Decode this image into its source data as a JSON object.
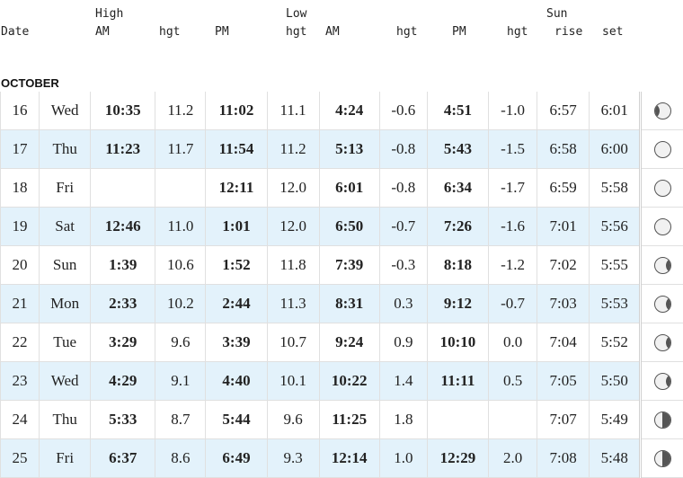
{
  "header": {
    "high_label": "High",
    "low_label": "Low",
    "sun_label": "Sun",
    "date": "Date",
    "am": "AM",
    "hgt": "hgt",
    "pm": "PM",
    "rise": "rise",
    "set": "set"
  },
  "month": "OCTOBER",
  "rows": [
    {
      "day": "16",
      "dow": "Wed",
      "hi_am": "10:35",
      "hi_am_h": "11.2",
      "hi_pm": "11:02",
      "hi_pm_h": "11.1",
      "lo_am": "4:24",
      "lo_am_h": "-0.6",
      "lo_pm": "4:51",
      "lo_pm_h": "-1.0",
      "rise": "6:57",
      "set": "6:01",
      "moon_phase": "waxing-gibbous"
    },
    {
      "day": "17",
      "dow": "Thu",
      "hi_am": "11:23",
      "hi_am_h": "11.7",
      "hi_pm": "11:54",
      "hi_pm_h": "11.2",
      "lo_am": "5:13",
      "lo_am_h": "-0.8",
      "lo_pm": "5:43",
      "lo_pm_h": "-1.5",
      "rise": "6:58",
      "set": "6:00",
      "moon_phase": "full"
    },
    {
      "day": "18",
      "dow": "Fri",
      "hi_am": "",
      "hi_am_h": "",
      "hi_pm": "12:11",
      "hi_pm_h": "12.0",
      "lo_am": "6:01",
      "lo_am_h": "-0.8",
      "lo_pm": "6:34",
      "lo_pm_h": "-1.7",
      "rise": "6:59",
      "set": "5:58",
      "moon_phase": "full"
    },
    {
      "day": "19",
      "dow": "Sat",
      "hi_am": "12:46",
      "hi_am_h": "11.0",
      "hi_pm": "1:01",
      "hi_pm_h": "12.0",
      "lo_am": "6:50",
      "lo_am_h": "-0.7",
      "lo_pm": "7:26",
      "lo_pm_h": "-1.6",
      "rise": "7:01",
      "set": "5:56",
      "moon_phase": "full"
    },
    {
      "day": "20",
      "dow": "Sun",
      "hi_am": "1:39",
      "hi_am_h": "10.6",
      "hi_pm": "1:52",
      "hi_pm_h": "11.8",
      "lo_am": "7:39",
      "lo_am_h": "-0.3",
      "lo_pm": "8:18",
      "lo_pm_h": "-1.2",
      "rise": "7:02",
      "set": "5:55",
      "moon_phase": "waning-gibbous"
    },
    {
      "day": "21",
      "dow": "Mon",
      "hi_am": "2:33",
      "hi_am_h": "10.2",
      "hi_pm": "2:44",
      "hi_pm_h": "11.3",
      "lo_am": "8:31",
      "lo_am_h": "0.3",
      "lo_pm": "9:12",
      "lo_pm_h": "-0.7",
      "rise": "7:03",
      "set": "5:53",
      "moon_phase": "waning-gibbous"
    },
    {
      "day": "22",
      "dow": "Tue",
      "hi_am": "3:29",
      "hi_am_h": "9.6",
      "hi_pm": "3:39",
      "hi_pm_h": "10.7",
      "lo_am": "9:24",
      "lo_am_h": "0.9",
      "lo_pm": "10:10",
      "lo_pm_h": "0.0",
      "rise": "7:04",
      "set": "5:52",
      "moon_phase": "waning-gibbous"
    },
    {
      "day": "23",
      "dow": "Wed",
      "hi_am": "4:29",
      "hi_am_h": "9.1",
      "hi_pm": "4:40",
      "hi_pm_h": "10.1",
      "lo_am": "10:22",
      "lo_am_h": "1.4",
      "lo_pm": "11:11",
      "lo_pm_h": "0.5",
      "rise": "7:05",
      "set": "5:50",
      "moon_phase": "waning-gibbous"
    },
    {
      "day": "24",
      "dow": "Thu",
      "hi_am": "5:33",
      "hi_am_h": "8.7",
      "hi_pm": "5:44",
      "hi_pm_h": "9.6",
      "lo_am": "11:25",
      "lo_am_h": "1.8",
      "lo_pm": "",
      "lo_pm_h": "",
      "rise": "7:07",
      "set": "5:49",
      "moon_phase": "last-quarter"
    },
    {
      "day": "25",
      "dow": "Fri",
      "hi_am": "6:37",
      "hi_am_h": "8.6",
      "hi_pm": "6:49",
      "hi_pm_h": "9.3",
      "lo_am": "12:14",
      "lo_am_h": "1.0",
      "lo_pm": "12:29",
      "lo_pm_h": "2.0",
      "rise": "7:08",
      "set": "5:48",
      "moon_phase": "last-quarter"
    }
  ]
}
